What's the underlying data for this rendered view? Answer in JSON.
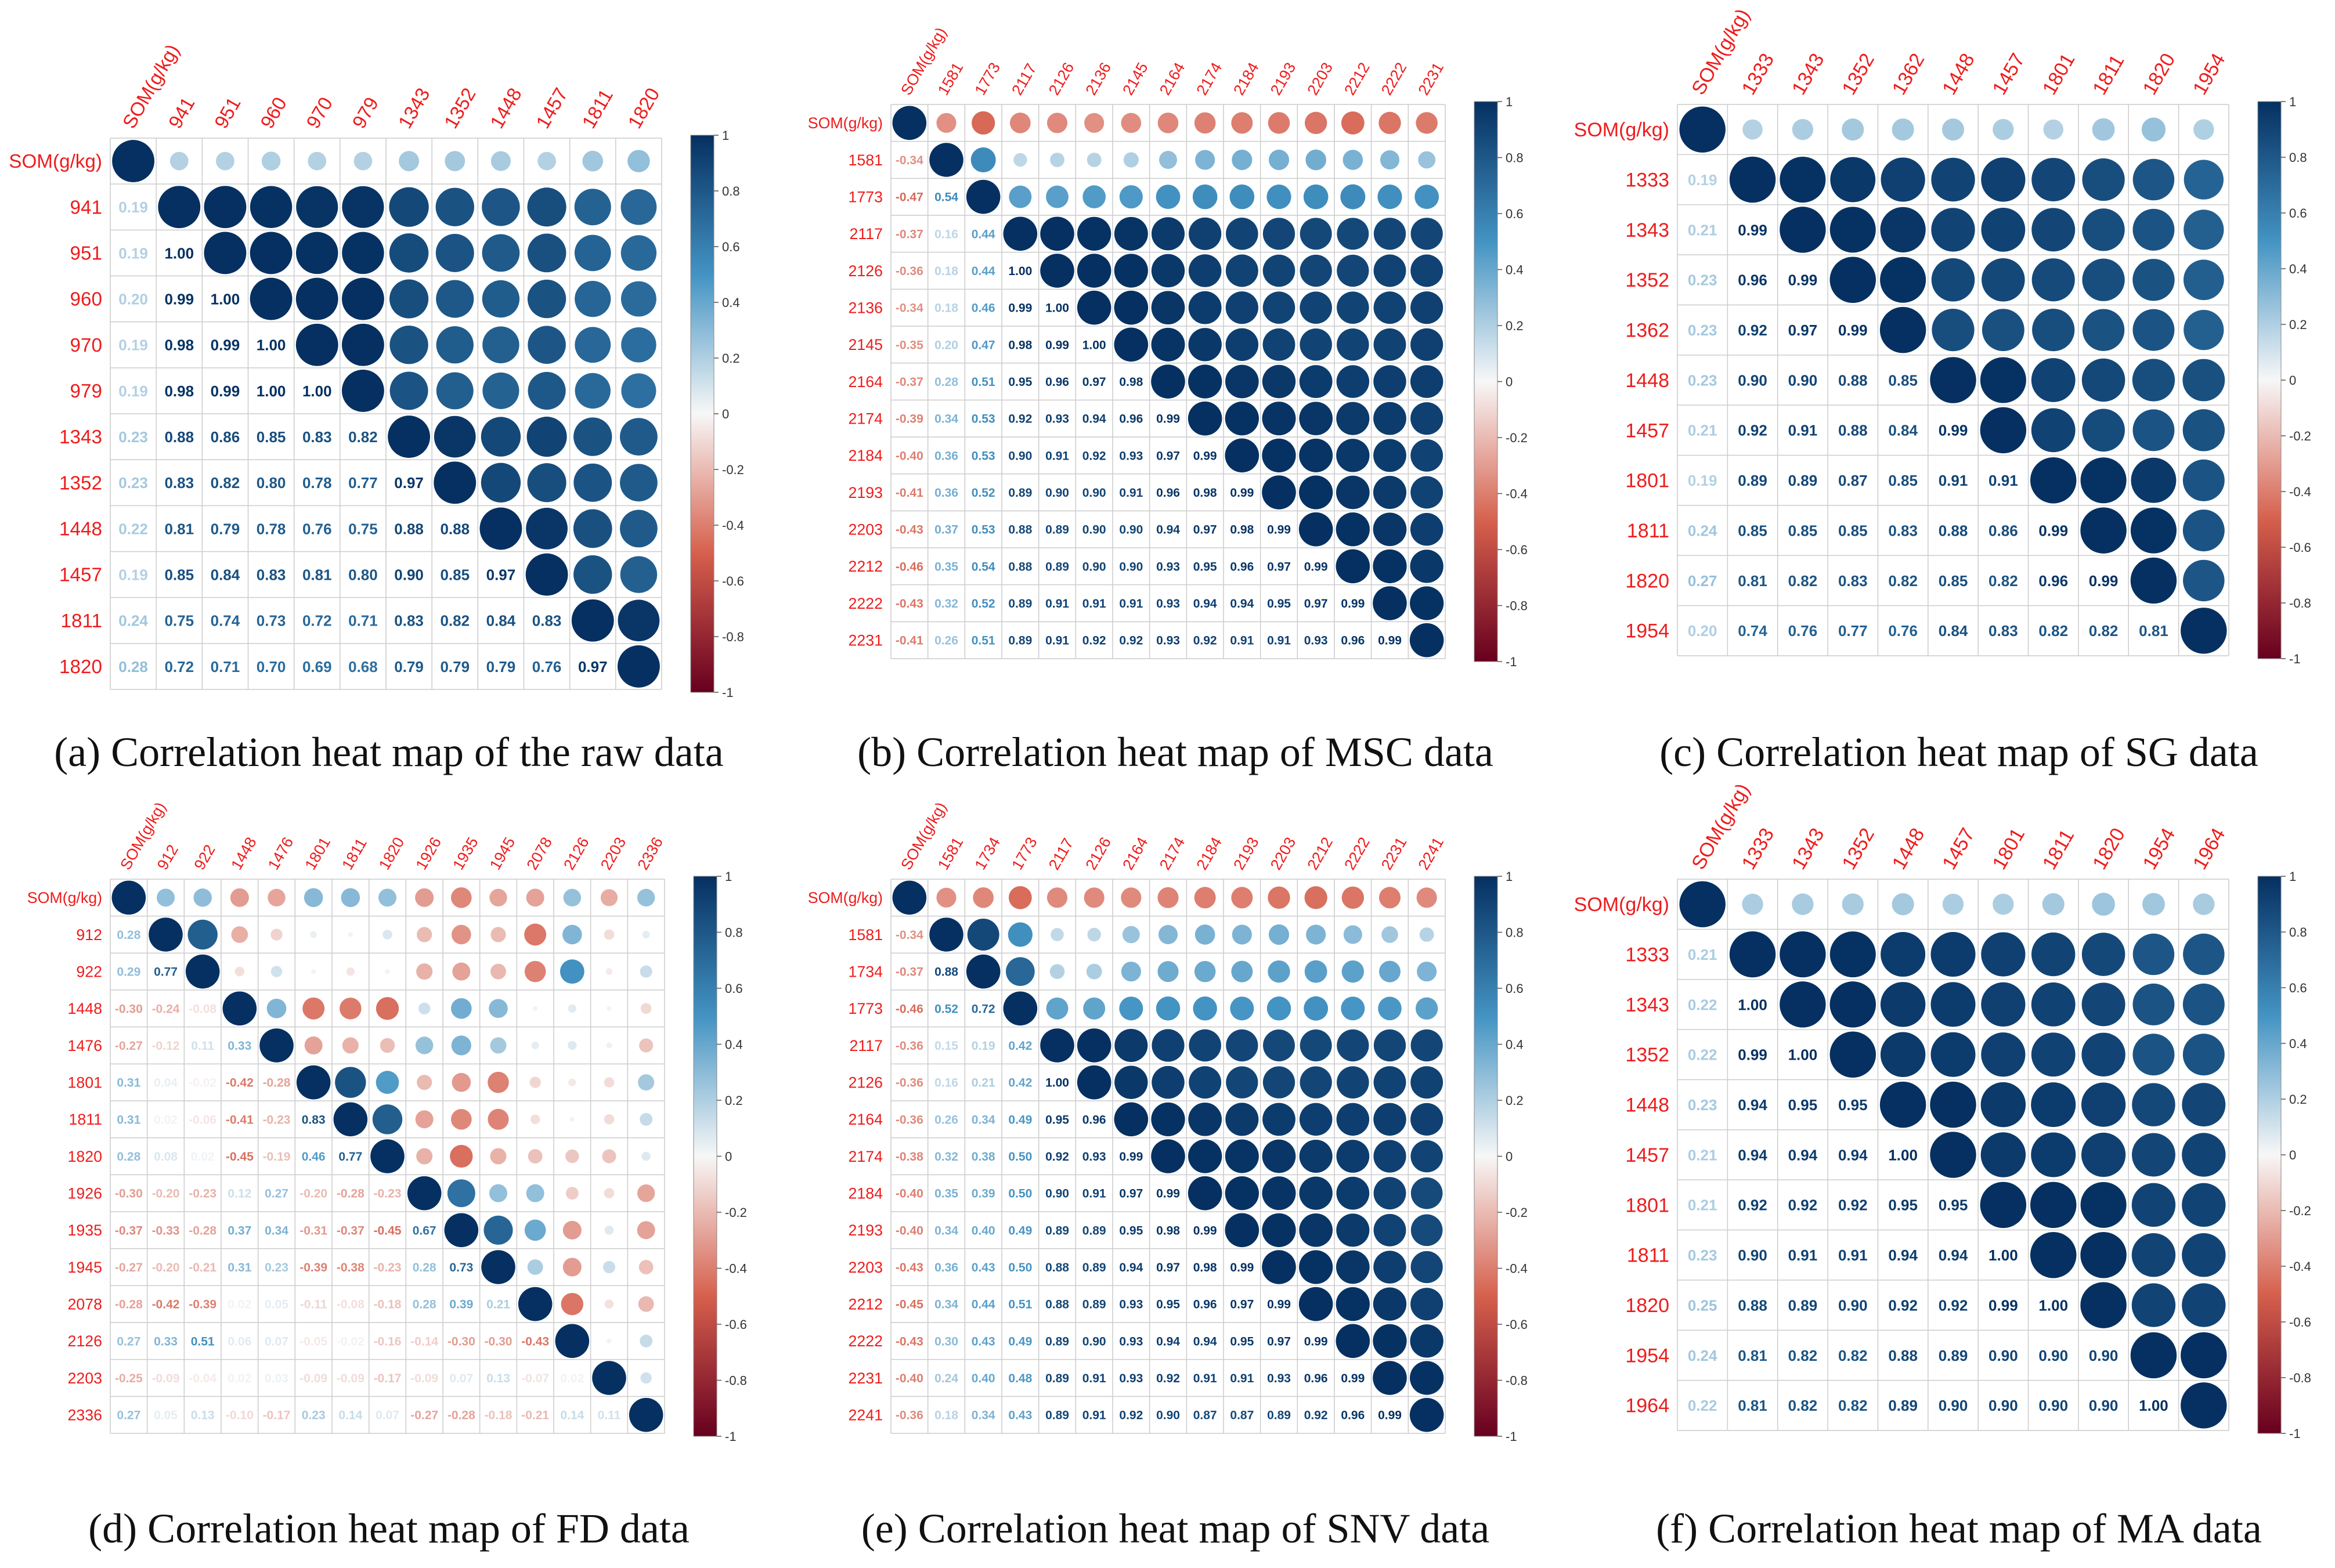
{
  "colors": {
    "negative": "#67001f",
    "zero": "#f7f7f7",
    "positive": "#053061",
    "labels": "#ee1c1c",
    "grid": "#cccccc"
  },
  "colorbar_ticks": [
    "1",
    "0.8",
    "0.6",
    "0.4",
    "0.2",
    "0",
    "-0.2",
    "-0.4",
    "-0.6",
    "-0.8",
    "-1"
  ],
  "chart_data": [
    {
      "type": "heatmap",
      "title": "(a) Correlation heat map of the raw data",
      "variables": [
        "SOM(g/kg)",
        "941",
        "951",
        "960",
        "970",
        "979",
        "1343",
        "1352",
        "1448",
        "1457",
        "1811",
        "1820"
      ],
      "lower": [
        [],
        [
          "0.19"
        ],
        [
          "0.19",
          "1.00"
        ],
        [
          "0.20",
          "0.99",
          "1.00"
        ],
        [
          "0.19",
          "0.98",
          "0.99",
          "1.00"
        ],
        [
          "0.19",
          "0.98",
          "0.99",
          "1.00",
          "1.00"
        ],
        [
          "0.23",
          "0.88",
          "0.86",
          "0.85",
          "0.83",
          "0.82"
        ],
        [
          "0.23",
          "0.83",
          "0.82",
          "0.80",
          "0.78",
          "0.77",
          "0.97"
        ],
        [
          "0.22",
          "0.81",
          "0.79",
          "0.78",
          "0.76",
          "0.75",
          "0.88",
          "0.88"
        ],
        [
          "0.19",
          "0.85",
          "0.84",
          "0.83",
          "0.81",
          "0.80",
          "0.90",
          "0.85",
          "0.97"
        ],
        [
          "0.24",
          "0.75",
          "0.74",
          "0.73",
          "0.72",
          "0.71",
          "0.83",
          "0.82",
          "0.84",
          "0.83"
        ],
        [
          "0.28",
          "0.72",
          "0.71",
          "0.70",
          "0.69",
          "0.68",
          "0.79",
          "0.79",
          "0.79",
          "0.76",
          "0.97"
        ]
      ],
      "color_range": [
        -1,
        1
      ]
    },
    {
      "type": "heatmap",
      "title": "(b) Correlation heat map of MSC data",
      "variables": [
        "SOM(g/kg)",
        "1581",
        "1773",
        "2117",
        "2126",
        "2136",
        "2145",
        "2164",
        "2174",
        "2184",
        "2193",
        "2203",
        "2212",
        "2222",
        "2231"
      ],
      "lower": [
        [],
        [
          "-0.34"
        ],
        [
          "-0.47",
          "0.54"
        ],
        [
          "-0.37",
          "0.16",
          "0.44"
        ],
        [
          "-0.36",
          "0.18",
          "0.44",
          "1.00"
        ],
        [
          "-0.34",
          "0.18",
          "0.46",
          "0.99",
          "1.00"
        ],
        [
          "-0.35",
          "0.20",
          "0.47",
          "0.98",
          "0.99",
          "1.00"
        ],
        [
          "-0.37",
          "0.28",
          "0.51",
          "0.95",
          "0.96",
          "0.97",
          "0.98"
        ],
        [
          "-0.39",
          "0.34",
          "0.53",
          "0.92",
          "0.93",
          "0.94",
          "0.96",
          "0.99"
        ],
        [
          "-0.40",
          "0.36",
          "0.53",
          "0.90",
          "0.91",
          "0.92",
          "0.93",
          "0.97",
          "0.99"
        ],
        [
          "-0.41",
          "0.36",
          "0.52",
          "0.89",
          "0.90",
          "0.90",
          "0.91",
          "0.96",
          "0.98",
          "0.99"
        ],
        [
          "-0.43",
          "0.37",
          "0.53",
          "0.88",
          "0.89",
          "0.90",
          "0.90",
          "0.94",
          "0.97",
          "0.98",
          "0.99"
        ],
        [
          "-0.46",
          "0.35",
          "0.54",
          "0.88",
          "0.89",
          "0.90",
          "0.90",
          "0.93",
          "0.95",
          "0.96",
          "0.97",
          "0.99"
        ],
        [
          "-0.43",
          "0.32",
          "0.52",
          "0.89",
          "0.91",
          "0.91",
          "0.91",
          "0.93",
          "0.94",
          "0.94",
          "0.95",
          "0.97",
          "0.99"
        ],
        [
          "-0.41",
          "0.26",
          "0.51",
          "0.89",
          "0.91",
          "0.92",
          "0.92",
          "0.93",
          "0.92",
          "0.91",
          "0.91",
          "0.93",
          "0.96",
          "0.99"
        ]
      ],
      "color_range": [
        -1,
        1
      ]
    },
    {
      "type": "heatmap",
      "title": "(c) Correlation heat map of SG data",
      "variables": [
        "SOM(g/kg)",
        "1333",
        "1343",
        "1352",
        "1362",
        "1448",
        "1457",
        "1801",
        "1811",
        "1820",
        "1954"
      ],
      "lower": [
        [],
        [
          "0.19"
        ],
        [
          "0.21",
          "0.99"
        ],
        [
          "0.23",
          "0.96",
          "0.99"
        ],
        [
          "0.23",
          "0.92",
          "0.97",
          "0.99"
        ],
        [
          "0.23",
          "0.90",
          "0.90",
          "0.88",
          "0.85"
        ],
        [
          "0.21",
          "0.92",
          "0.91",
          "0.88",
          "0.84",
          "0.99"
        ],
        [
          "0.19",
          "0.89",
          "0.89",
          "0.87",
          "0.85",
          "0.91",
          "0.91"
        ],
        [
          "0.24",
          "0.85",
          "0.85",
          "0.85",
          "0.83",
          "0.88",
          "0.86",
          "0.99"
        ],
        [
          "0.27",
          "0.81",
          "0.82",
          "0.83",
          "0.82",
          "0.85",
          "0.82",
          "0.96",
          "0.99"
        ],
        [
          "0.20",
          "0.74",
          "0.76",
          "0.77",
          "0.76",
          "0.84",
          "0.83",
          "0.82",
          "0.82",
          "0.81"
        ]
      ],
      "color_range": [
        -1,
        1
      ]
    },
    {
      "type": "heatmap",
      "title": "(d) Correlation heat map of FD data",
      "variables": [
        "SOM(g/kg)",
        "912",
        "922",
        "1448",
        "1476",
        "1801",
        "1811",
        "1820",
        "1926",
        "1935",
        "1945",
        "2078",
        "2126",
        "2203",
        "2336"
      ],
      "lower": [
        [],
        [
          "0.28"
        ],
        [
          "0.29",
          "0.77"
        ],
        [
          "-0.30",
          "-0.24",
          "-0.08"
        ],
        [
          "-0.27",
          "-0.12",
          "0.11",
          "0.33"
        ],
        [
          "0.31",
          "0.04",
          "-0.02",
          "-0.42",
          "-0.28"
        ],
        [
          "0.31",
          "0.02",
          "-0.06",
          "-0.41",
          "-0.23",
          "0.83"
        ],
        [
          "0.28",
          "0.08",
          "0.02",
          "-0.45",
          "-0.19",
          "0.46",
          "0.77"
        ],
        [
          "-0.30",
          "-0.20",
          "-0.23",
          "0.12",
          "0.27",
          "-0.20",
          "-0.28",
          "-0.23"
        ],
        [
          "-0.37",
          "-0.33",
          "-0.28",
          "0.37",
          "0.34",
          "-0.31",
          "-0.37",
          "-0.45",
          "0.67"
        ],
        [
          "-0.27",
          "-0.20",
          "-0.21",
          "0.31",
          "0.23",
          "-0.39",
          "-0.38",
          "-0.23",
          "0.28",
          "0.73"
        ],
        [
          "-0.28",
          "-0.42",
          "-0.39",
          "0.02",
          "0.05",
          "-0.11",
          "-0.08",
          "-0.18",
          "0.28",
          "0.39",
          "0.21"
        ],
        [
          "0.27",
          "0.33",
          "0.51",
          "0.06",
          "0.07",
          "-0.05",
          "-0.02",
          "-0.16",
          "-0.14",
          "-0.30",
          "-0.30",
          "-0.43"
        ],
        [
          "-0.25",
          "-0.09",
          "-0.04",
          "0.02",
          "0.03",
          "-0.09",
          "-0.09",
          "-0.17",
          "-0.09",
          "0.07",
          "0.13",
          "-0.07",
          "0.02"
        ],
        [
          "0.27",
          "0.05",
          "0.13",
          "-0.10",
          "-0.17",
          "0.23",
          "0.14",
          "0.07",
          "-0.27",
          "-0.28",
          "-0.18",
          "-0.21",
          "0.14",
          "0.11"
        ]
      ],
      "color_range": [
        -1,
        1
      ]
    },
    {
      "type": "heatmap",
      "title": "(e) Correlation heat map of SNV data",
      "variables": [
        "SOM(g/kg)",
        "1581",
        "1734",
        "1773",
        "2117",
        "2126",
        "2164",
        "2174",
        "2184",
        "2193",
        "2203",
        "2212",
        "2222",
        "2231",
        "2241"
      ],
      "lower": [
        [],
        [
          "-0.34"
        ],
        [
          "-0.37",
          "0.88"
        ],
        [
          "-0.46",
          "0.52",
          "0.72"
        ],
        [
          "-0.36",
          "0.15",
          "0.19",
          "0.42"
        ],
        [
          "-0.36",
          "0.16",
          "0.21",
          "0.42",
          "1.00"
        ],
        [
          "-0.36",
          "0.26",
          "0.34",
          "0.49",
          "0.95",
          "0.96"
        ],
        [
          "-0.38",
          "0.32",
          "0.38",
          "0.50",
          "0.92",
          "0.93",
          "0.99"
        ],
        [
          "-0.40",
          "0.35",
          "0.39",
          "0.50",
          "0.90",
          "0.91",
          "0.97",
          "0.99"
        ],
        [
          "-0.40",
          "0.34",
          "0.40",
          "0.49",
          "0.89",
          "0.89",
          "0.95",
          "0.98",
          "0.99"
        ],
        [
          "-0.43",
          "0.36",
          "0.43",
          "0.50",
          "0.88",
          "0.89",
          "0.94",
          "0.97",
          "0.98",
          "0.99"
        ],
        [
          "-0.45",
          "0.34",
          "0.44",
          "0.51",
          "0.88",
          "0.89",
          "0.93",
          "0.95",
          "0.96",
          "0.97",
          "0.99"
        ],
        [
          "-0.43",
          "0.30",
          "0.43",
          "0.49",
          "0.89",
          "0.90",
          "0.93",
          "0.94",
          "0.94",
          "0.95",
          "0.97",
          "0.99"
        ],
        [
          "-0.40",
          "0.24",
          "0.40",
          "0.48",
          "0.89",
          "0.91",
          "0.93",
          "0.92",
          "0.91",
          "0.91",
          "0.93",
          "0.96",
          "0.99"
        ],
        [
          "-0.36",
          "0.18",
          "0.34",
          "0.43",
          "0.89",
          "0.91",
          "0.92",
          "0.90",
          "0.87",
          "0.87",
          "0.89",
          "0.92",
          "0.96",
          "0.99"
        ]
      ],
      "color_range": [
        -1,
        1
      ]
    },
    {
      "type": "heatmap",
      "title": "(f) Correlation heat map of MA data",
      "variables": [
        "SOM(g/kg)",
        "1333",
        "1343",
        "1352",
        "1448",
        "1457",
        "1801",
        "1811",
        "1820",
        "1954",
        "1964"
      ],
      "lower": [
        [],
        [
          "0.21"
        ],
        [
          "0.22",
          "1.00"
        ],
        [
          "0.22",
          "0.99",
          "1.00"
        ],
        [
          "0.23",
          "0.94",
          "0.95",
          "0.95"
        ],
        [
          "0.21",
          "0.94",
          "0.94",
          "0.94",
          "1.00"
        ],
        [
          "0.21",
          "0.92",
          "0.92",
          "0.92",
          "0.95",
          "0.95"
        ],
        [
          "0.23",
          "0.90",
          "0.91",
          "0.91",
          "0.94",
          "0.94",
          "1.00"
        ],
        [
          "0.25",
          "0.88",
          "0.89",
          "0.90",
          "0.92",
          "0.92",
          "0.99",
          "1.00"
        ],
        [
          "0.24",
          "0.81",
          "0.82",
          "0.82",
          "0.88",
          "0.89",
          "0.90",
          "0.90",
          "0.90"
        ],
        [
          "0.22",
          "0.81",
          "0.82",
          "0.82",
          "0.89",
          "0.90",
          "0.90",
          "0.90",
          "0.90",
          "1.00"
        ]
      ],
      "color_range": [
        -1,
        1
      ]
    }
  ]
}
